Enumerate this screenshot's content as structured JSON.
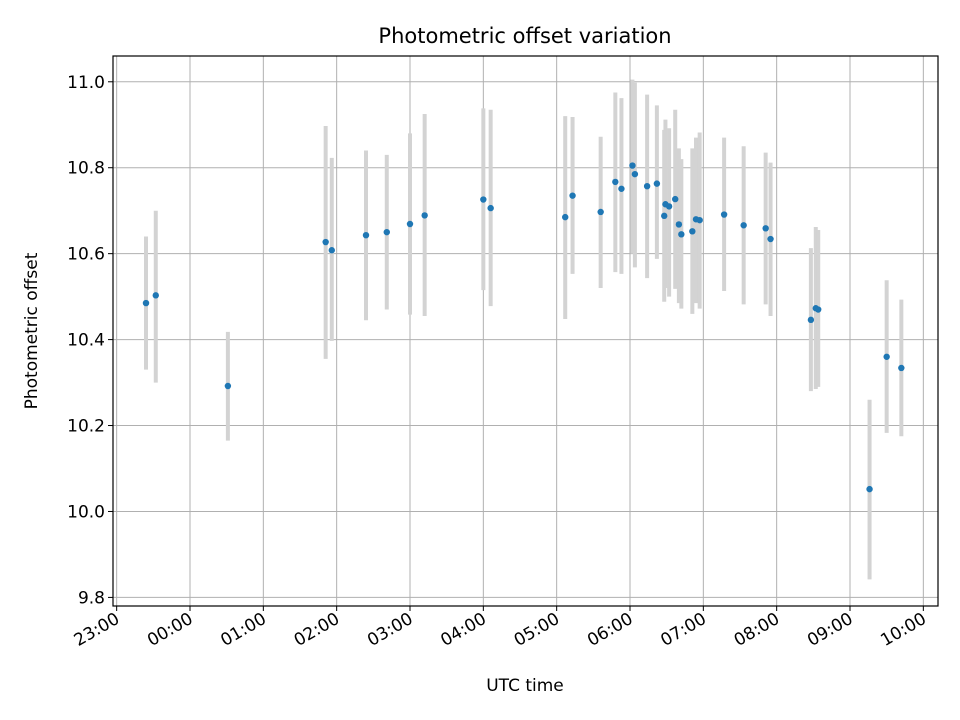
{
  "chart_data": {
    "type": "scatter",
    "title": "Photometric offset variation",
    "xlabel": "UTC time",
    "ylabel": "Photometric offset",
    "xlim": [
      "22:57",
      "10:12"
    ],
    "ylim": [
      9.78,
      11.06
    ],
    "grid": true,
    "x_ticks": [
      "23:00",
      "00:00",
      "01:00",
      "02:00",
      "03:00",
      "04:00",
      "05:00",
      "06:00",
      "07:00",
      "08:00",
      "09:00",
      "10:00"
    ],
    "y_ticks": [
      9.8,
      10.0,
      10.2,
      10.4,
      10.6,
      10.8,
      11.0
    ],
    "point_color": "#1f77b4",
    "errorbar_color": "#d3d3d3",
    "series": [
      {
        "points": [
          {
            "x": "23:24",
            "y": 10.485,
            "lo": 10.33,
            "hi": 10.64
          },
          {
            "x": "23:32",
            "y": 10.503,
            "lo": 10.3,
            "hi": 10.7
          },
          {
            "x": "00:31",
            "y": 10.292,
            "lo": 10.165,
            "hi": 10.418
          },
          {
            "x": "01:51",
            "y": 10.627,
            "lo": 10.355,
            "hi": 10.897
          },
          {
            "x": "01:56",
            "y": 10.608,
            "lo": 10.397,
            "hi": 10.823
          },
          {
            "x": "02:24",
            "y": 10.643,
            "lo": 10.445,
            "hi": 10.84
          },
          {
            "x": "02:41",
            "y": 10.65,
            "lo": 10.47,
            "hi": 10.83
          },
          {
            "x": "03:00",
            "y": 10.669,
            "lo": 10.458,
            "hi": 10.88
          },
          {
            "x": "03:12",
            "y": 10.689,
            "lo": 10.455,
            "hi": 10.925
          },
          {
            "x": "04:00",
            "y": 10.726,
            "lo": 10.515,
            "hi": 10.938
          },
          {
            "x": "04:06",
            "y": 10.706,
            "lo": 10.478,
            "hi": 10.935
          },
          {
            "x": "05:07",
            "y": 10.685,
            "lo": 10.448,
            "hi": 10.92
          },
          {
            "x": "05:13",
            "y": 10.735,
            "lo": 10.553,
            "hi": 10.918
          },
          {
            "x": "05:36",
            "y": 10.697,
            "lo": 10.52,
            "hi": 10.872
          },
          {
            "x": "05:48",
            "y": 10.767,
            "lo": 10.557,
            "hi": 10.975
          },
          {
            "x": "05:53",
            "y": 10.751,
            "lo": 10.553,
            "hi": 10.962
          },
          {
            "x": "06:02",
            "y": 10.805,
            "lo": 10.6,
            "hi": 11.005
          },
          {
            "x": "06:04",
            "y": 10.785,
            "lo": 10.568,
            "hi": 10.998
          },
          {
            "x": "06:14",
            "y": 10.757,
            "lo": 10.543,
            "hi": 10.97
          },
          {
            "x": "06:22",
            "y": 10.763,
            "lo": 10.588,
            "hi": 10.945
          },
          {
            "x": "06:28",
            "y": 10.688,
            "lo": 10.488,
            "hi": 10.888
          },
          {
            "x": "06:29",
            "y": 10.715,
            "lo": 10.52,
            "hi": 10.912
          },
          {
            "x": "06:32",
            "y": 10.71,
            "lo": 10.5,
            "hi": 10.892
          },
          {
            "x": "06:37",
            "y": 10.727,
            "lo": 10.518,
            "hi": 10.935
          },
          {
            "x": "06:40",
            "y": 10.668,
            "lo": 10.485,
            "hi": 10.845
          },
          {
            "x": "06:42",
            "y": 10.645,
            "lo": 10.472,
            "hi": 10.82
          },
          {
            "x": "06:51",
            "y": 10.652,
            "lo": 10.46,
            "hi": 10.845
          },
          {
            "x": "06:54",
            "y": 10.68,
            "lo": 10.485,
            "hi": 10.87
          },
          {
            "x": "06:57",
            "y": 10.678,
            "lo": 10.472,
            "hi": 10.882
          },
          {
            "x": "07:17",
            "y": 10.691,
            "lo": 10.513,
            "hi": 10.87
          },
          {
            "x": "07:33",
            "y": 10.666,
            "lo": 10.482,
            "hi": 10.85
          },
          {
            "x": "07:51",
            "y": 10.659,
            "lo": 10.482,
            "hi": 10.835
          },
          {
            "x": "07:55",
            "y": 10.634,
            "lo": 10.455,
            "hi": 10.812
          },
          {
            "x": "08:28",
            "y": 10.446,
            "lo": 10.28,
            "hi": 10.613
          },
          {
            "x": "08:32",
            "y": 10.473,
            "lo": 10.285,
            "hi": 10.662
          },
          {
            "x": "08:34",
            "y": 10.47,
            "lo": 10.29,
            "hi": 10.655
          },
          {
            "x": "09:16",
            "y": 10.052,
            "lo": 9.842,
            "hi": 10.26
          },
          {
            "x": "09:30",
            "y": 10.36,
            "lo": 10.183,
            "hi": 10.538
          },
          {
            "x": "09:42",
            "y": 10.334,
            "lo": 10.175,
            "hi": 10.493
          }
        ]
      }
    ]
  }
}
